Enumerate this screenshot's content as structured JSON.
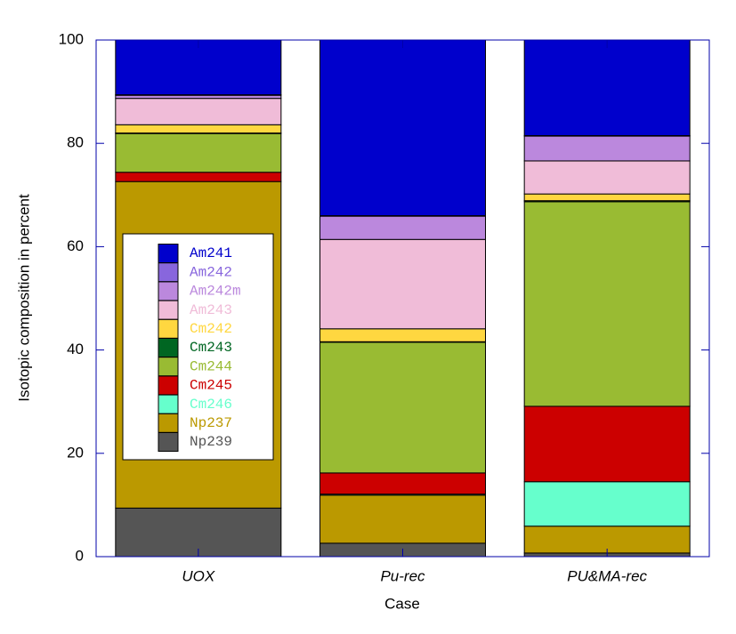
{
  "chart_data": {
    "type": "stacked_bar",
    "xlabel": "Case",
    "ylabel": "Isotopic composition in percent",
    "categories": [
      "UOX",
      "Pu-rec",
      "PU&MA-rec"
    ],
    "series": [
      {
        "name": "Np239",
        "color": "#555555",
        "values": [
          9.4,
          2.6,
          0.7
        ]
      },
      {
        "name": "Np237",
        "color": "#bb9900",
        "values": [
          63.2,
          9.3,
          5.2
        ]
      },
      {
        "name": "Cm246",
        "color": "#66ffcc",
        "values": [
          0,
          0.2,
          8.6
        ]
      },
      {
        "name": "Cm245",
        "color": "#cc0000",
        "values": [
          1.8,
          4.1,
          14.6
        ]
      },
      {
        "name": "Cm244",
        "color": "#99bb33",
        "values": [
          7.5,
          25.3,
          39.6
        ]
      },
      {
        "name": "Cm243",
        "color": "#006622",
        "values": [
          0.1,
          0.1,
          0.2
        ]
      },
      {
        "name": "Cm242",
        "color": "#ffd740",
        "values": [
          1.6,
          2.5,
          1.3
        ]
      },
      {
        "name": "Am243",
        "color": "#f0bcd8",
        "values": [
          5.1,
          17.3,
          6.4
        ]
      },
      {
        "name": "Am242m",
        "color": "#bb88dd",
        "values": [
          0.6,
          4.5,
          4.8
        ]
      },
      {
        "name": "Am242",
        "color": "#8866dd",
        "values": [
          0.1,
          0.1,
          0.1
        ]
      },
      {
        "name": "Am241",
        "color": "#0000cc",
        "values": [
          10.6,
          34.0,
          18.5
        ]
      }
    ],
    "ylim": [
      0,
      100
    ],
    "yticks": [
      0,
      20,
      40,
      60,
      80,
      100
    ]
  }
}
